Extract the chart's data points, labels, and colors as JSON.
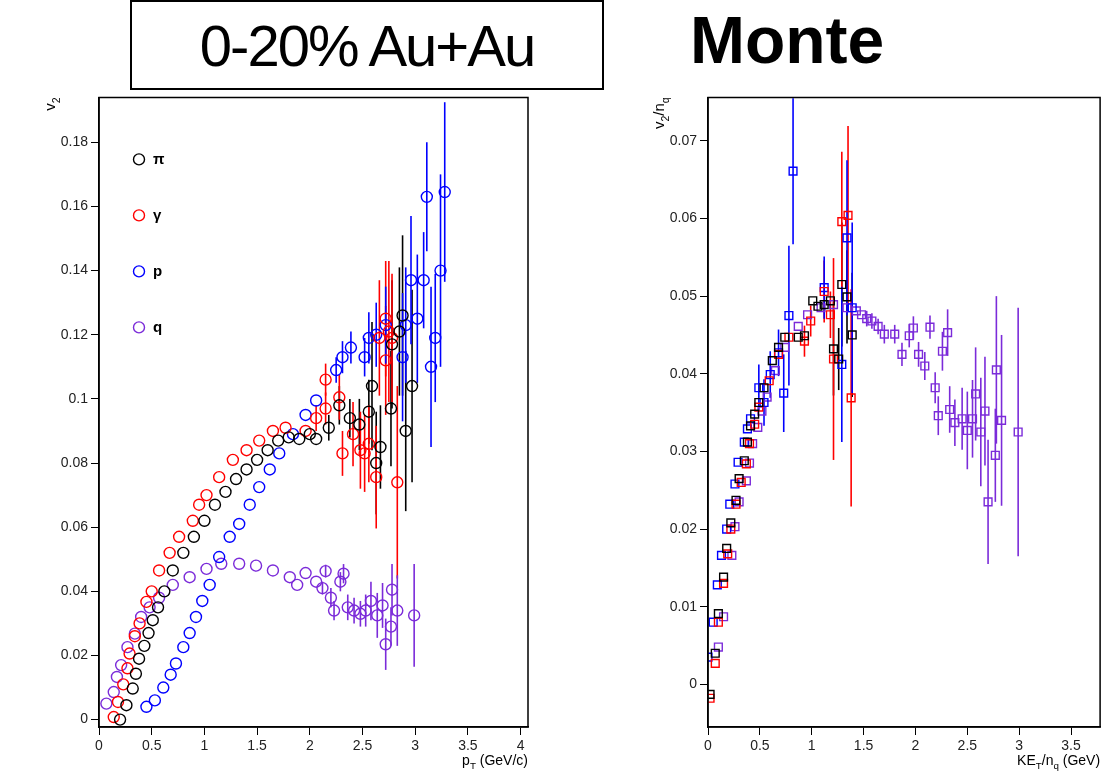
{
  "chart_data": [
    {
      "type": "scatter",
      "title": "0-20% Au+Au",
      "xlabel": "p$_{T}$ (GeV/c)",
      "ylabel": "v$_{2}$",
      "marker": "circle",
      "legend": "top left",
      "grid": false,
      "xlim": [
        0,
        4.07
      ],
      "xticks": [
        0,
        0.5,
        1,
        1.5,
        2,
        2.5,
        3,
        3.5,
        4
      ],
      "ylim": [
        -0.0023,
        0.194
      ],
      "yticks": [
        0,
        0.02,
        0.04,
        0.06,
        0.08,
        0.1,
        0.12,
        0.14,
        0.16,
        0.18
      ],
      "series": [
        {
          "name": "π",
          "color": "#000000",
          "x": [
            0.2,
            0.26,
            0.32,
            0.35,
            0.38,
            0.43,
            0.47,
            0.51,
            0.56,
            0.62,
            0.7,
            0.8,
            0.9,
            1.0,
            1.1,
            1.2,
            1.3,
            1.4,
            1.5,
            1.6,
            1.7,
            1.8,
            1.9,
            2.0,
            2.06,
            2.18,
            2.28,
            2.38,
            2.47,
            2.56,
            2.59,
            2.63,
            2.67,
            2.77,
            2.78,
            2.85,
            2.88,
            2.91,
            2.97
          ],
          "values": [
            0,
            0.0045,
            0.0097,
            0.0143,
            0.019,
            0.023,
            0.027,
            0.031,
            0.035,
            0.04,
            0.0465,
            0.052,
            0.057,
            0.062,
            0.067,
            0.071,
            0.075,
            0.078,
            0.081,
            0.084,
            0.087,
            0.088,
            0.0875,
            0.089,
            0.0875,
            0.091,
            0.098,
            0.094,
            0.092,
            0.096,
            0.104,
            0.08,
            0.085,
            0.097,
            0.117,
            0.121,
            0.126,
            0.09,
            0.104
          ],
          "errors": [
            null,
            null,
            null,
            null,
            null,
            null,
            null,
            null,
            null,
            null,
            null,
            null,
            null,
            null,
            null,
            null,
            null,
            null,
            null,
            null,
            null,
            null,
            null,
            null,
            null,
            0.004,
            0.006,
            0.006,
            0.008,
            0.01,
            0.02,
            0.016,
            0.013,
            0.018,
            0.02,
            0.02,
            0.025,
            0.025,
            0.03
          ]
        },
        {
          "name": "γ",
          "color": "#ff0000",
          "x": [
            0.14,
            0.18,
            0.23,
            0.27,
            0.29,
            0.34,
            0.385,
            0.45,
            0.5,
            0.57,
            0.67,
            0.76,
            0.89,
            0.95,
            1.02,
            1.14,
            1.27,
            1.4,
            1.52,
            1.65,
            1.77,
            1.96,
            2.06,
            2.15,
            2.15,
            2.28,
            2.31,
            2.41,
            2.48,
            2.52,
            2.56,
            2.63,
            2.66,
            2.72,
            2.72,
            2.75,
            2.78,
            2.83
          ],
          "values": [
            0.0008,
            0.0055,
            0.011,
            0.016,
            0.0206,
            0.026,
            0.03,
            0.0367,
            0.04,
            0.0465,
            0.052,
            0.057,
            0.062,
            0.067,
            0.07,
            0.0756,
            0.081,
            0.084,
            0.087,
            0.09,
            0.091,
            0.09,
            0.094,
            0.097,
            0.106,
            0.1005,
            0.083,
            0.089,
            0.084,
            0.083,
            0.086,
            0.0756,
            0.119,
            0.112,
            0.125,
            0.121,
            0.119,
            0.074
          ],
          "errors": [
            null,
            null,
            null,
            null,
            null,
            null,
            null,
            null,
            null,
            null,
            null,
            null,
            null,
            null,
            null,
            null,
            null,
            null,
            null,
            null,
            null,
            null,
            0.004,
            0.005,
            0.005,
            0.007,
            0.007,
            0.01,
            0.012,
            0.012,
            0.012,
            0.016,
            0.018,
            0.017,
            0.018,
            0.022,
            0.02,
            0.03
          ]
        },
        {
          "name": "p",
          "color": "#0000ff",
          "x": [
            0.45,
            0.53,
            0.61,
            0.68,
            0.73,
            0.8,
            0.86,
            0.92,
            0.98,
            1.05,
            1.14,
            1.24,
            1.33,
            1.43,
            1.52,
            1.62,
            1.71,
            1.84,
            1.96,
            2.06,
            2.25,
            2.31,
            2.39,
            2.52,
            2.56,
            2.63,
            2.72,
            2.88,
            2.91,
            2.96,
            3.02,
            3.08,
            3.11,
            3.15,
            3.19,
            3.24,
            3.28
          ],
          "values": [
            0.004,
            0.006,
            0.01,
            0.014,
            0.0175,
            0.0226,
            0.027,
            0.032,
            0.037,
            0.042,
            0.0507,
            0.057,
            0.061,
            0.067,
            0.0725,
            0.078,
            0.083,
            0.089,
            0.095,
            0.0995,
            0.109,
            0.113,
            0.116,
            0.113,
            0.119,
            0.12,
            0.123,
            0.113,
            0.123,
            0.137,
            0.125,
            0.137,
            0.163,
            0.11,
            0.119,
            0.14,
            0.1645
          ],
          "errors": [
            null,
            null,
            null,
            null,
            null,
            null,
            null,
            null,
            null,
            null,
            null,
            null,
            null,
            null,
            null,
            null,
            null,
            null,
            null,
            null,
            0.004,
            0.005,
            0.005,
            0.006,
            0.008,
            0.01,
            0.012,
            0.02,
            0.018,
            0.02,
            0.02,
            0.015,
            0.017,
            0.025,
            0.02,
            0.03,
            0.028
          ]
        },
        {
          "name": "q",
          "color": "#7b2bd9",
          "x": [
            0.07,
            0.14,
            0.17,
            0.21,
            0.27,
            0.34,
            0.4,
            0.48,
            0.57,
            0.7,
            0.86,
            1.02,
            1.16,
            1.33,
            1.49,
            1.65,
            1.81,
            1.88,
            1.96,
            2.06,
            2.12,
            2.15,
            2.2,
            2.23,
            2.29,
            2.32,
            2.36,
            2.42,
            2.48,
            2.53,
            2.58,
            2.64,
            2.69,
            2.72,
            2.77,
            2.78,
            2.83,
            2.99
          ],
          "values": [
            0.005,
            0.0086,
            0.0133,
            0.017,
            0.0226,
            0.0268,
            0.032,
            0.035,
            0.038,
            0.042,
            0.0444,
            0.047,
            0.0486,
            0.0486,
            0.048,
            0.0465,
            0.0444,
            0.042,
            0.0457,
            0.043,
            0.041,
            0.0463,
            0.038,
            0.034,
            0.043,
            0.0455,
            0.035,
            0.034,
            0.033,
            0.034,
            0.037,
            0.0325,
            0.0356,
            0.0235,
            0.029,
            0.0405,
            0.034,
            0.0325
          ],
          "errors": [
            null,
            null,
            null,
            null,
            null,
            null,
            null,
            null,
            null,
            null,
            null,
            null,
            null,
            null,
            null,
            null,
            null,
            null,
            null,
            null,
            0.002,
            0.002,
            0.003,
            0.003,
            0.003,
            0.003,
            0.004,
            0.004,
            0.004,
            0.005,
            0.006,
            0.007,
            0.007,
            0.008,
            0.006,
            0.008,
            0.011,
            0.016
          ]
        }
      ]
    },
    {
      "type": "scatter",
      "title": "Monte",
      "xlabel": "KE$_{T}$/n$_{q}$ (GeV)",
      "ylabel": "v$_{2}$/n$_{q}$",
      "marker": "square",
      "grid": false,
      "xlim": [
        0,
        3.78
      ],
      "xticks": [
        0,
        0.5,
        1,
        1.5,
        2,
        2.5,
        3,
        3.5
      ],
      "ylim": [
        -0.0055,
        0.0756
      ],
      "yticks": [
        0,
        0.01,
        0.02,
        0.03,
        0.04,
        0.05,
        0.06,
        0.07
      ],
      "series": [
        {
          "color": "#000000",
          "x": [
            0.02,
            0.07,
            0.1,
            0.15,
            0.18,
            0.22,
            0.27,
            0.3,
            0.35,
            0.38,
            0.41,
            0.45,
            0.49,
            0.54,
            0.62,
            0.68,
            0.74,
            0.87,
            0.93,
            1.01,
            1.06,
            1.12,
            1.18,
            1.21,
            1.26,
            1.29,
            1.34,
            1.39
          ],
          "values": [
            -0.0013,
            0.004,
            0.0091,
            0.0138,
            0.0175,
            0.0208,
            0.0237,
            0.0265,
            0.0288,
            0.0312,
            0.0333,
            0.0348,
            0.0363,
            0.0382,
            0.0417,
            0.0434,
            0.0447,
            0.0447,
            0.0449,
            0.0494,
            0.0487,
            0.0489,
            0.0494,
            0.0432,
            0.0419,
            0.0515,
            0.0499,
            0.045
          ],
          "errors": [
            null,
            null,
            null,
            null,
            null,
            null,
            null,
            null,
            null,
            null,
            null,
            null,
            null,
            null,
            null,
            null,
            null,
            null,
            null,
            null,
            null,
            null,
            null,
            0.006,
            0.004,
            0.008,
            0.006,
            0.008
          ]
        },
        {
          "color": "#ff0000",
          "x": [
            0.02,
            0.07,
            0.1,
            0.15,
            0.19,
            0.22,
            0.27,
            0.32,
            0.37,
            0.4,
            0.45,
            0.49,
            0.59,
            0.68,
            0.78,
            0.93,
            0.99,
            1.12,
            1.18,
            1.21,
            1.29,
            1.35,
            1.38
          ],
          "values": [
            -0.0018,
            0.0027,
            0.008,
            0.013,
            0.0168,
            0.02,
            0.0232,
            0.026,
            0.0284,
            0.031,
            0.0335,
            0.0357,
            0.0391,
            0.0425,
            0.0447,
            0.0442,
            0.0468,
            0.0506,
            0.0476,
            0.0419,
            0.0596,
            0.0604,
            0.0369
          ],
          "errors": [
            null,
            null,
            null,
            null,
            null,
            null,
            null,
            null,
            null,
            null,
            null,
            null,
            null,
            null,
            null,
            0.002,
            0.002,
            0.004,
            0.003,
            0.013,
            0.009,
            0.0115,
            0.014
          ]
        },
        {
          "color": "#0000ff",
          "x": [
            0.0,
            0.05,
            0.09,
            0.13,
            0.18,
            0.21,
            0.26,
            0.29,
            0.35,
            0.38,
            0.41,
            0.49,
            0.54,
            0.6,
            0.68,
            0.73,
            0.78,
            0.82,
            1.12,
            1.29,
            1.34,
            1.39
          ],
          "values": [
            0.0035,
            0.008,
            0.0128,
            0.0166,
            0.02,
            0.0232,
            0.0258,
            0.0286,
            0.0312,
            0.0329,
            0.0342,
            0.0382,
            0.0363,
            0.0399,
            0.0427,
            0.0375,
            0.0475,
            0.0661,
            0.0511,
            0.0412,
            0.0575,
            0.0485
          ],
          "errors": [
            null,
            null,
            null,
            null,
            null,
            null,
            null,
            null,
            null,
            null,
            null,
            0.003,
            0.003,
            0.003,
            0.003,
            0.005,
            0.009,
            0.0094,
            0.004,
            0.01,
            0.01,
            0.011
          ]
        },
        {
          "color": "#7b2bd9",
          "x": [
            0.1,
            0.15,
            0.23,
            0.26,
            0.3,
            0.37,
            0.4,
            0.43,
            0.48,
            0.52,
            0.57,
            0.65,
            0.74,
            0.87,
            0.96,
            1.09,
            1.21,
            1.34,
            1.43,
            1.48,
            1.53,
            1.58,
            1.64,
            1.7,
            1.8,
            1.87,
            1.94,
            1.98,
            2.03,
            2.09,
            2.14,
            2.19,
            2.22,
            2.26,
            2.31,
            2.33,
            2.38,
            2.45,
            2.5,
            2.55,
            2.58,
            2.63,
            2.67,
            2.7,
            2.77,
            2.78,
            2.83,
            2.99
          ],
          "values": [
            0.0048,
            0.0087,
            0.0166,
            0.0203,
            0.0235,
            0.0262,
            0.0285,
            0.031,
            0.0331,
            0.0352,
            0.037,
            0.0404,
            0.0434,
            0.0461,
            0.0476,
            0.0485,
            0.0489,
            0.0485,
            0.0481,
            0.0476,
            0.0471,
            0.0468,
            0.0461,
            0.0451,
            0.0451,
            0.0425,
            0.0449,
            0.0459,
            0.0425,
            0.041,
            0.046,
            0.0382,
            0.0346,
            0.0429,
            0.0453,
            0.0354,
            0.0337,
            0.0342,
            0.0327,
            0.0342,
            0.0374,
            0.0325,
            0.0352,
            0.0235,
            0.0295,
            0.0405,
            0.034,
            0.0325
          ],
          "errors": [
            null,
            null,
            null,
            null,
            null,
            null,
            null,
            null,
            null,
            null,
            null,
            null,
            null,
            null,
            null,
            null,
            null,
            null,
            null,
            null,
            0.001,
            0.001,
            0.001,
            0.0012,
            0.0012,
            0.0015,
            0.0015,
            0.0015,
            0.0016,
            0.0018,
            0.0015,
            0.002,
            0.0025,
            0.0025,
            0.003,
            0.003,
            0.003,
            0.004,
            0.005,
            0.005,
            0.006,
            0.007,
            0.007,
            0.008,
            0.006,
            0.0095,
            0.011,
            0.016
          ]
        }
      ]
    }
  ]
}
